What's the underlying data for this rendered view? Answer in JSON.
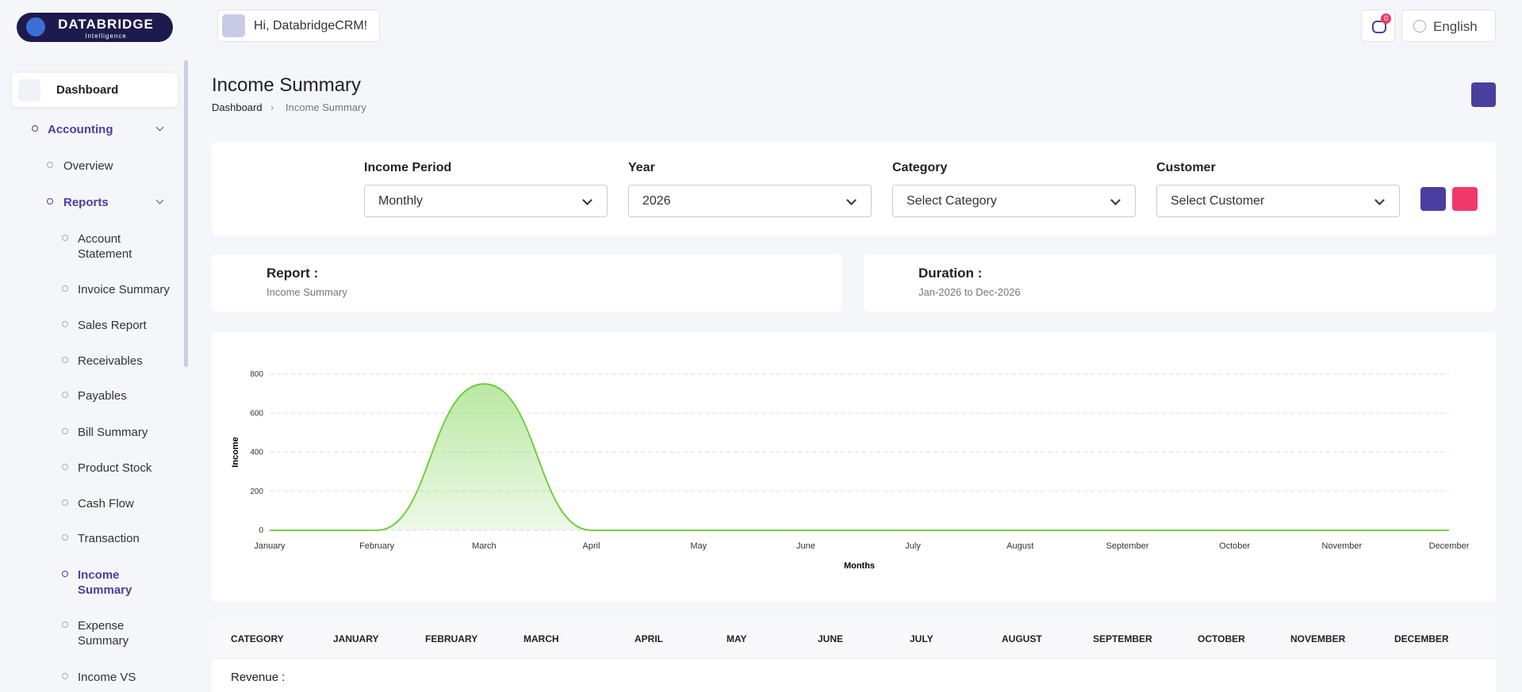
{
  "header": {
    "logo": "DATABRIDGE",
    "logo_sub": "Intelligence",
    "greeting": "Hi, DatabridgeCRM!",
    "notifications": "0",
    "language": "English"
  },
  "sidebar": {
    "items": [
      "Dashboard",
      "Accounting",
      "Overview",
      "Reports",
      "Account Statement",
      "Invoice Summary",
      "Sales Report",
      "Receivables",
      "Payables",
      "Bill Summary",
      "Product Stock",
      "Cash Flow",
      "Transaction",
      "Income Summary",
      "Expense Summary",
      "Income VS"
    ]
  },
  "page": {
    "title": "Income Summary",
    "breadcrumb": [
      "Dashboard",
      "Income Summary"
    ]
  },
  "filters": {
    "labels": [
      "Income Period",
      "Year",
      "Category",
      "Customer"
    ],
    "values": [
      "Monthly",
      "2026",
      "Select Category",
      "Select Customer"
    ]
  },
  "report": {
    "report_label": "Report :",
    "report_value": "Income Summary",
    "duration_label": "Duration :",
    "duration_value": "Jan-2026 to Dec-2026"
  },
  "chart_data": {
    "type": "area",
    "categories": [
      "January",
      "February",
      "March",
      "April",
      "May",
      "June",
      "July",
      "August",
      "September",
      "October",
      "November",
      "December"
    ],
    "series": [
      {
        "name": "Income",
        "color": "#66cc33",
        "values": [
          0,
          0,
          750,
          0,
          0,
          0,
          0,
          0,
          0,
          0,
          0,
          0
        ]
      }
    ],
    "x_label": "Months",
    "y_label": "Income",
    "ylim": [
      0,
      800
    ],
    "yticks": [
      0,
      200,
      400,
      600,
      800
    ],
    "grid": true
  },
  "table": {
    "columns": [
      "CATEGORY",
      "JANUARY",
      "FEBRUARY",
      "MARCH",
      "APRIL",
      "MAY",
      "JUNE",
      "JULY",
      "AUGUST",
      "SEPTEMBER",
      "OCTOBER",
      "NOVEMBER",
      "DECEMBER"
    ],
    "rows": [
      [
        "Revenue :"
      ]
    ]
  }
}
